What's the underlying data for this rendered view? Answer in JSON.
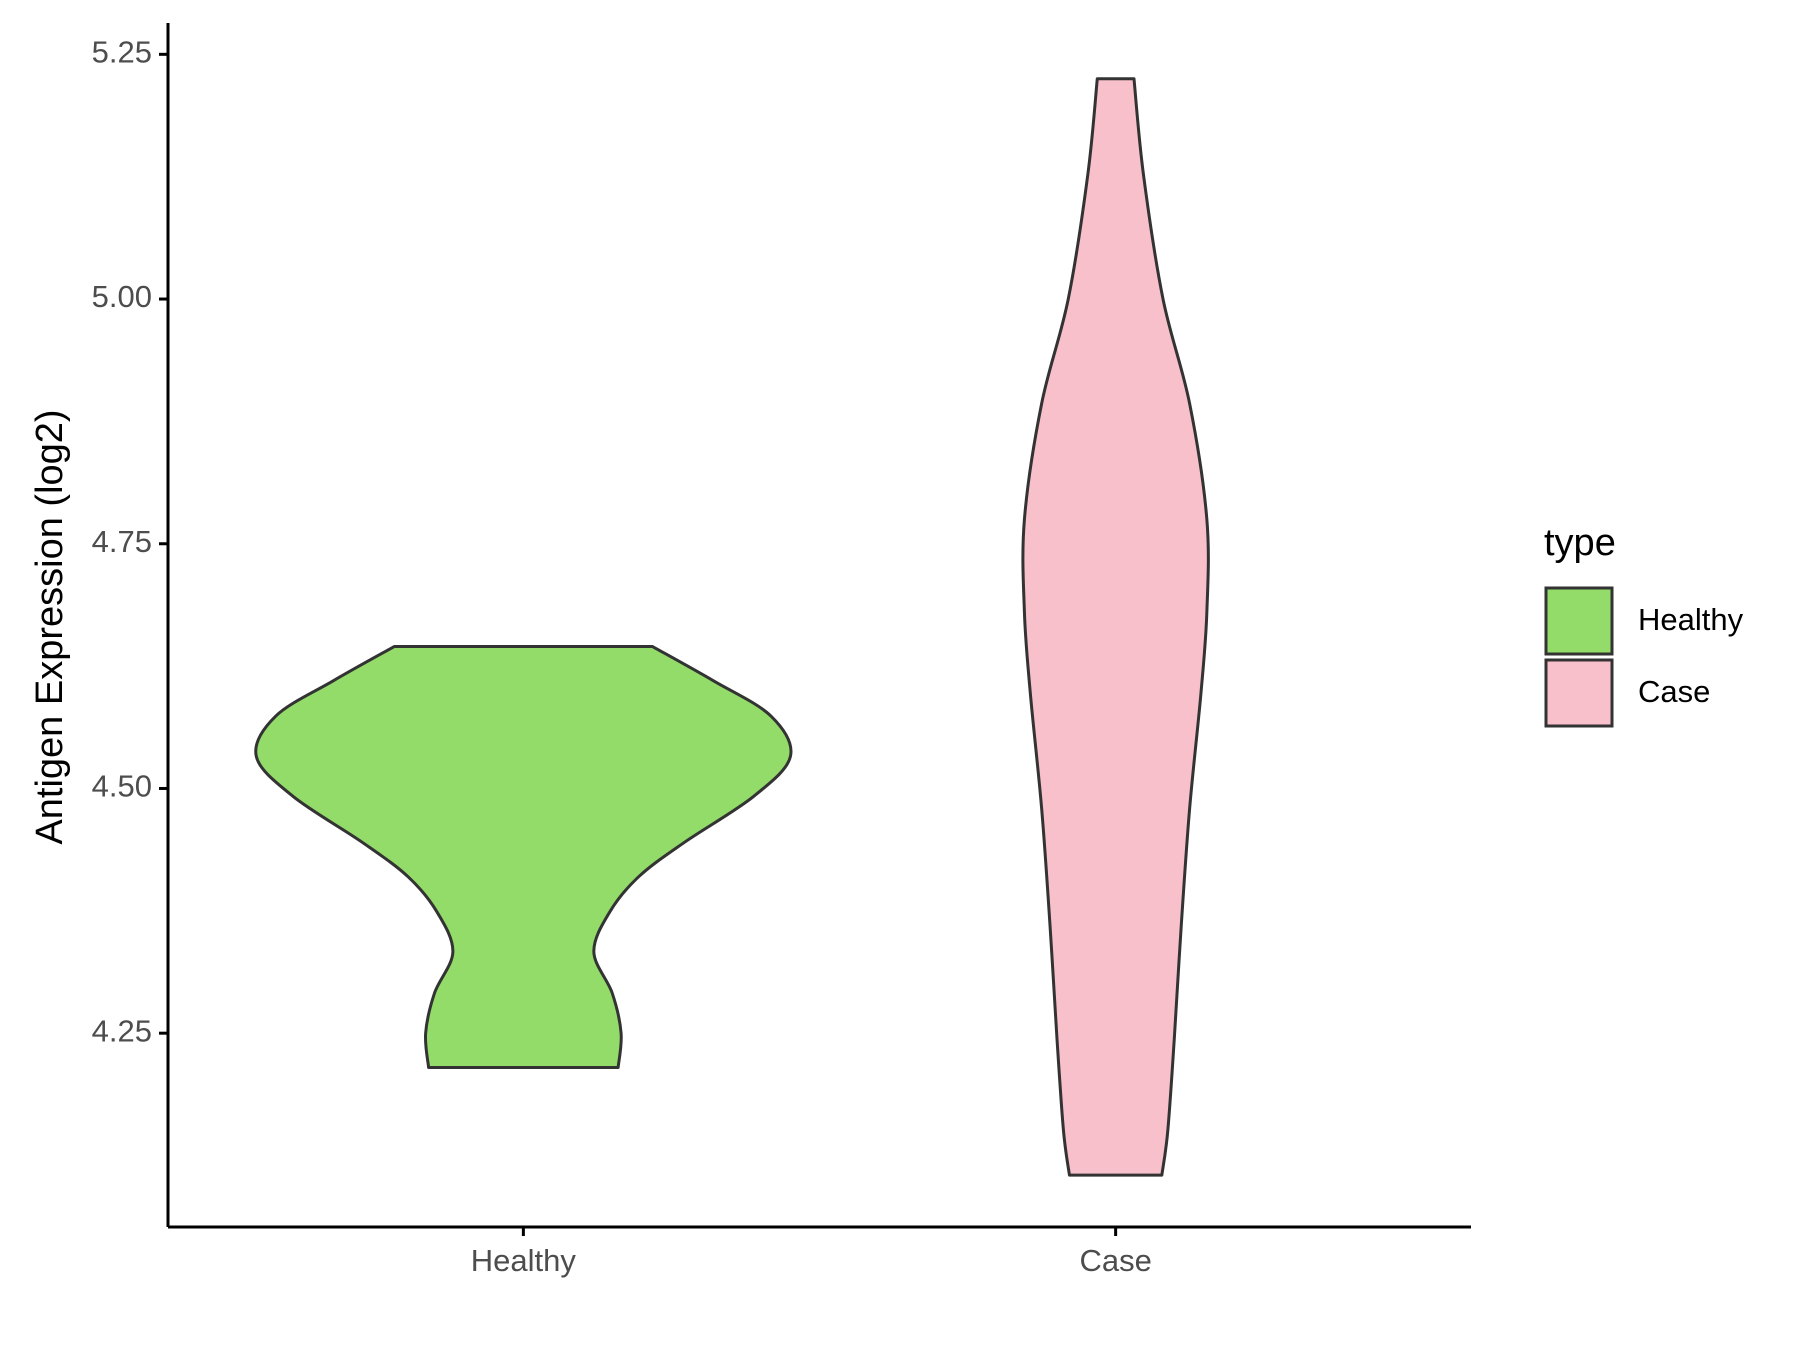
{
  "chart_data": {
    "type": "violin",
    "y_label": "Antigen Expression (log2)",
    "categories": [
      "Healthy",
      "Case"
    ],
    "legend_title": "type",
    "ylim": [
      4.052,
      5.282
    ],
    "yticks": [
      4.25,
      {
        "value": 4.5,
        "label": "4.50"
      },
      {
        "value": 4.75,
        "label": "4.75"
      },
      {
        "value": 5,
        "label": "5.00"
      },
      5.25
    ],
    "series": [
      {
        "name": "Healthy",
        "color": "#93dc6a",
        "y": [
          4.645,
          4.61,
          4.574,
          4.533,
          4.492,
          4.445,
          4.41,
          4.374,
          4.333,
          4.291,
          4.25,
          4.215
        ],
        "half_width": [
          0.218,
          0.321,
          0.418,
          0.451,
          0.389,
          0.272,
          0.195,
          0.146,
          0.119,
          0.15,
          0.165,
          0.16
        ]
      },
      {
        "name": "Case",
        "color": "#f8c0cb",
        "y": [
          5.225,
          5.127,
          5.0,
          4.893,
          4.775,
          4.68,
          4.597,
          4.48,
          4.362,
          4.244,
          4.15,
          4.105
        ],
        "half_width": [
          0.031,
          0.047,
          0.08,
          0.125,
          0.154,
          0.154,
          0.144,
          0.125,
          0.111,
          0.099,
          0.088,
          0.078
        ]
      }
    ]
  }
}
